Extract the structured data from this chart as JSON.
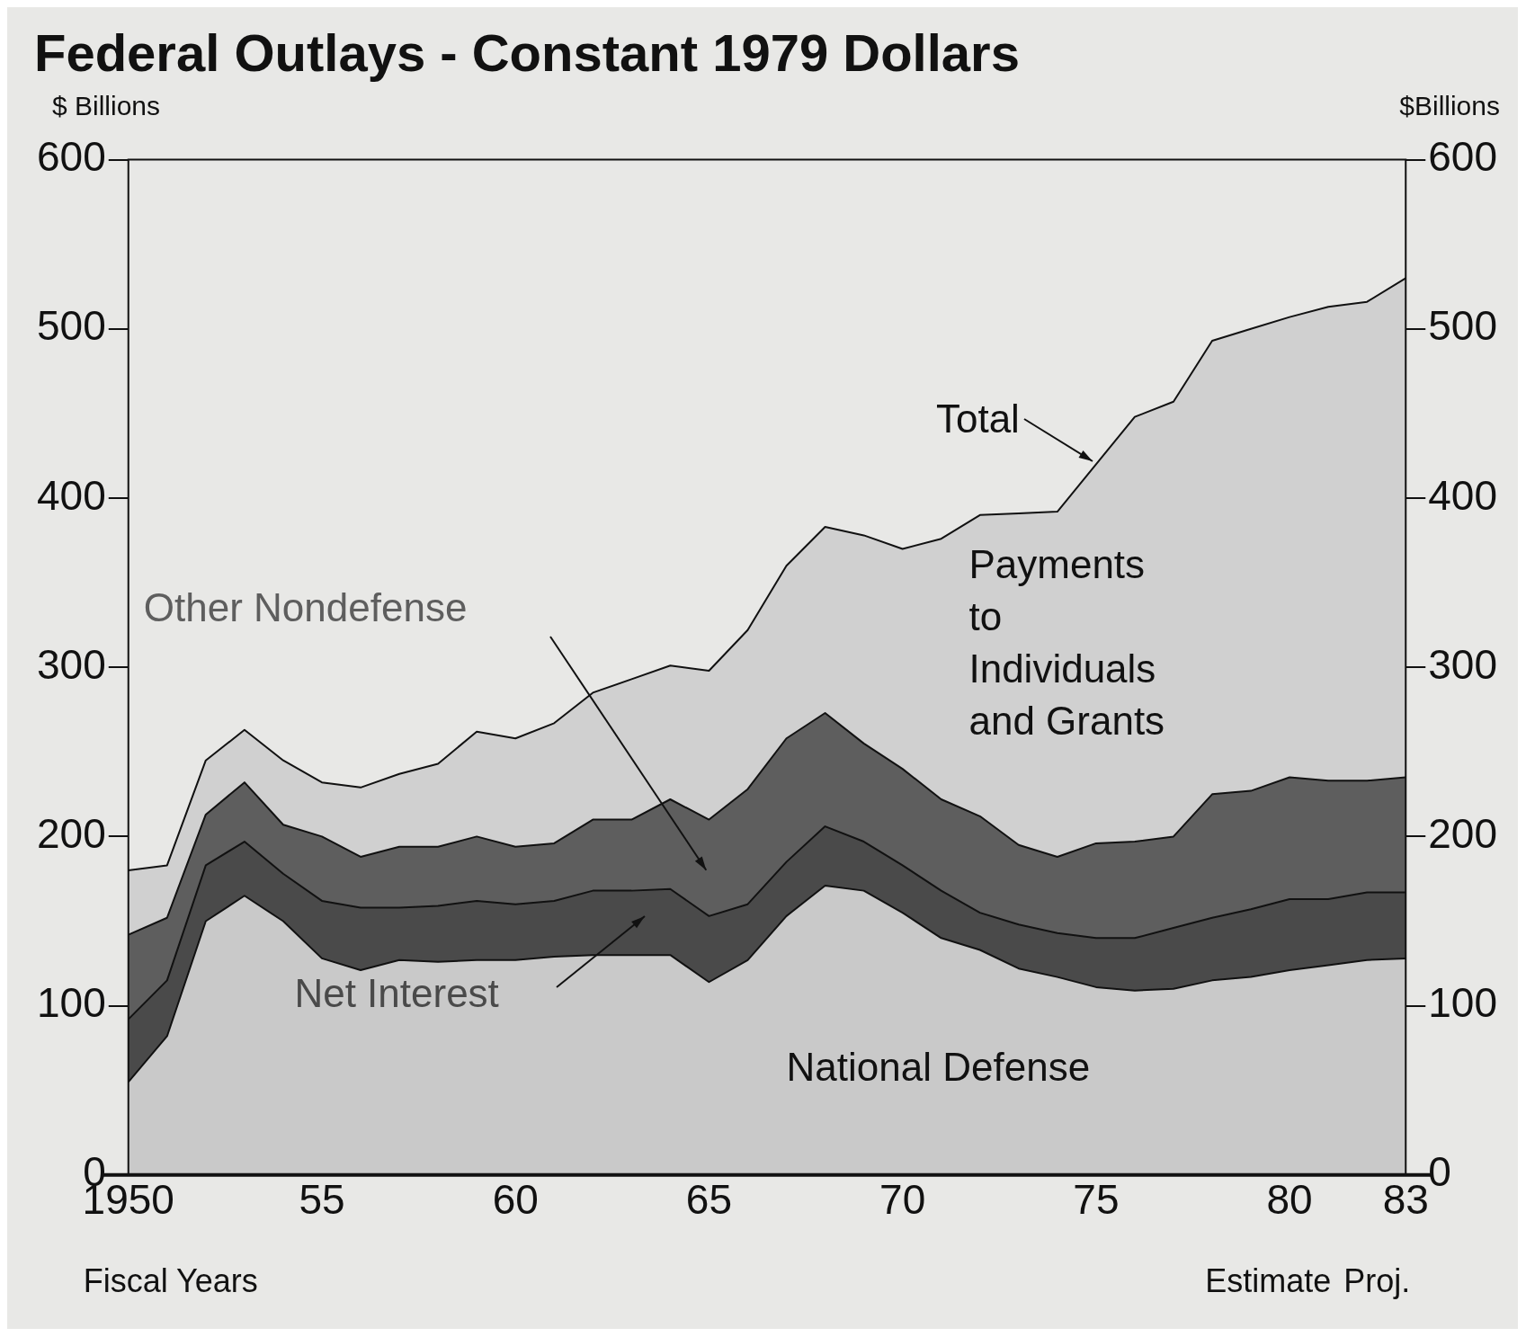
{
  "chart_data": {
    "type": "area",
    "stacked": true,
    "title": "Federal Outlays - Constant 1979 Dollars",
    "xlabel": "Fiscal Years",
    "ylabel": "$ Billions",
    "y2label": "$Billions",
    "x": [
      1950,
      1951,
      1952,
      1953,
      1954,
      1955,
      1956,
      1957,
      1958,
      1959,
      1960,
      1961,
      1962,
      1963,
      1964,
      1965,
      1966,
      1967,
      1968,
      1969,
      1970,
      1971,
      1972,
      1973,
      1974,
      1975,
      1976,
      1977,
      1978,
      1979,
      1980,
      1981,
      1982,
      1983
    ],
    "series": [
      {
        "name": "National Defense",
        "color": "#c9c9c9",
        "values": [
          55,
          82,
          150,
          165,
          150,
          128,
          121,
          127,
          126,
          127,
          127,
          129,
          130,
          130,
          130,
          114,
          127,
          153,
          171,
          168,
          155,
          140,
          133,
          122,
          117,
          111,
          109,
          110,
          115,
          117,
          121,
          124,
          127,
          128
        ]
      },
      {
        "name": "Net Interest",
        "color": "#4a4a4a",
        "values": [
          37,
          33,
          33,
          32,
          28,
          34,
          37,
          31,
          33,
          35,
          33,
          33,
          38,
          38,
          39,
          39,
          33,
          32,
          35,
          29,
          28,
          28,
          22,
          26,
          26,
          29,
          31,
          36,
          37,
          40,
          42,
          39,
          40,
          39
        ]
      },
      {
        "name": "Other Nondefense",
        "color": "#5e5e5e",
        "values": [
          50,
          37,
          30,
          35,
          29,
          38,
          30,
          36,
          35,
          38,
          34,
          34,
          42,
          42,
          53,
          57,
          68,
          73,
          67,
          58,
          57,
          54,
          57,
          47,
          45,
          56,
          57,
          54,
          73,
          70,
          72,
          70,
          66,
          68
        ]
      },
      {
        "name": "Payments to Individuals and Grants",
        "color": "#d0d0d0",
        "values": [
          38,
          31,
          32,
          31,
          38,
          32,
          41,
          43,
          49,
          62,
          64,
          71,
          75,
          83,
          79,
          88,
          94,
          102,
          110,
          123,
          130,
          154,
          178,
          196,
          204,
          224,
          251,
          257,
          268,
          273,
          272,
          280,
          283,
          295
        ]
      }
    ],
    "xlim": [
      1950,
      1983
    ],
    "xticks": [
      1950,
      {
        "value": 1955,
        "label": "55"
      },
      {
        "value": 1960,
        "label": "60"
      },
      {
        "value": 1965,
        "label": "65"
      },
      {
        "value": 1970,
        "label": "70"
      },
      {
        "value": 1975,
        "label": "75"
      },
      {
        "value": 1980,
        "label": "80"
      },
      {
        "value": 1983,
        "label": "83"
      }
    ],
    "ylim": [
      0,
      600
    ],
    "yticks": [
      0,
      100,
      200,
      300,
      400,
      500,
      600
    ],
    "y2lim": [
      0,
      600
    ],
    "y2ticks": [
      0,
      100,
      200,
      300,
      400,
      500,
      600
    ],
    "annotations": [
      {
        "text": "Total",
        "x": 1975,
        "y": 420
      },
      "Estimate",
      "Proj."
    ],
    "grid": false,
    "legend": false
  }
}
